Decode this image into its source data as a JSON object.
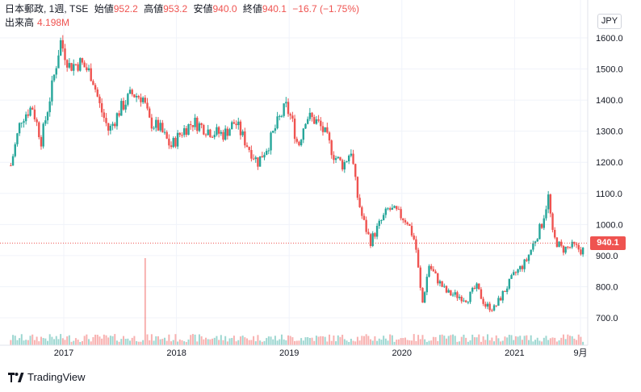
{
  "legend": {
    "symbol": "日本郵政, 1週, TSE",
    "open_label": "始値",
    "open": "952.2",
    "high_label": "高値",
    "high": "953.2",
    "low_label": "安値",
    "low": "940.0",
    "close_label": "終値",
    "close": "940.1",
    "change": "−16.7 (−1.75%)"
  },
  "volume": {
    "label": "出来高",
    "value": "4.198M"
  },
  "currency": "JPY",
  "last_price": "940.1",
  "brand": "TradingView",
  "colors": {
    "up": "#26a69a",
    "down": "#ef5350",
    "grid": "#f0f3fa",
    "axis_text": "#131722"
  },
  "chart_data": {
    "type": "candlestick",
    "y_ticks": [
      "1600.0",
      "1500.0",
      "1400.0",
      "1300.0",
      "1200.0",
      "1100.0",
      "1000.0",
      "900.0",
      "800.0",
      "700.0"
    ],
    "x_ticks": [
      "2017",
      "2018",
      "2019",
      "2020",
      "2021",
      "9月"
    ],
    "ylim": [
      640,
      1640
    ],
    "last_price": 940.1,
    "close_path": [
      {
        "t": 2016.53,
        "v": 1190
      },
      {
        "t": 2016.62,
        "v": 1340
      },
      {
        "t": 2016.72,
        "v": 1380
      },
      {
        "t": 2016.8,
        "v": 1270
      },
      {
        "t": 2016.9,
        "v": 1450
      },
      {
        "t": 2016.97,
        "v": 1590
      },
      {
        "t": 2017.05,
        "v": 1510
      },
      {
        "t": 2017.15,
        "v": 1520
      },
      {
        "t": 2017.25,
        "v": 1480
      },
      {
        "t": 2017.32,
        "v": 1380
      },
      {
        "t": 2017.4,
        "v": 1300
      },
      {
        "t": 2017.5,
        "v": 1370
      },
      {
        "t": 2017.6,
        "v": 1420
      },
      {
        "t": 2017.7,
        "v": 1410
      },
      {
        "t": 2017.76,
        "v": 1330
      },
      {
        "t": 2017.85,
        "v": 1310
      },
      {
        "t": 2017.95,
        "v": 1250
      },
      {
        "t": 2018.05,
        "v": 1300
      },
      {
        "t": 2018.15,
        "v": 1330
      },
      {
        "t": 2018.3,
        "v": 1300
      },
      {
        "t": 2018.42,
        "v": 1290
      },
      {
        "t": 2018.52,
        "v": 1330
      },
      {
        "t": 2018.62,
        "v": 1260
      },
      {
        "t": 2018.72,
        "v": 1200
      },
      {
        "t": 2018.82,
        "v": 1260
      },
      {
        "t": 2018.9,
        "v": 1330
      },
      {
        "t": 2018.97,
        "v": 1380
      },
      {
        "t": 2019.02,
        "v": 1340
      },
      {
        "t": 2019.08,
        "v": 1250
      },
      {
        "t": 2019.15,
        "v": 1350
      },
      {
        "t": 2019.25,
        "v": 1330
      },
      {
        "t": 2019.32,
        "v": 1290
      },
      {
        "t": 2019.4,
        "v": 1220
      },
      {
        "t": 2019.48,
        "v": 1190
      },
      {
        "t": 2019.55,
        "v": 1240
      },
      {
        "t": 2019.6,
        "v": 1100
      },
      {
        "t": 2019.65,
        "v": 1020
      },
      {
        "t": 2019.72,
        "v": 945
      },
      {
        "t": 2019.8,
        "v": 1000
      },
      {
        "t": 2019.88,
        "v": 1050
      },
      {
        "t": 2019.95,
        "v": 1040
      },
      {
        "t": 2020.05,
        "v": 1010
      },
      {
        "t": 2020.12,
        "v": 940
      },
      {
        "t": 2020.18,
        "v": 740
      },
      {
        "t": 2020.24,
        "v": 870
      },
      {
        "t": 2020.32,
        "v": 820
      },
      {
        "t": 2020.4,
        "v": 780
      },
      {
        "t": 2020.5,
        "v": 770
      },
      {
        "t": 2020.58,
        "v": 760
      },
      {
        "t": 2020.66,
        "v": 800
      },
      {
        "t": 2020.74,
        "v": 740
      },
      {
        "t": 2020.82,
        "v": 730
      },
      {
        "t": 2020.9,
        "v": 780
      },
      {
        "t": 2021.0,
        "v": 840
      },
      {
        "t": 2021.1,
        "v": 880
      },
      {
        "t": 2021.18,
        "v": 950
      },
      {
        "t": 2021.24,
        "v": 1000
      },
      {
        "t": 2021.3,
        "v": 1090
      },
      {
        "t": 2021.34,
        "v": 960
      },
      {
        "t": 2021.42,
        "v": 920
      },
      {
        "t": 2021.52,
        "v": 930
      },
      {
        "t": 2021.6,
        "v": 915
      },
      {
        "t": 2021.66,
        "v": 940
      }
    ],
    "volume_spike": {
      "t": 2017.72,
      "multiple": 6
    }
  }
}
